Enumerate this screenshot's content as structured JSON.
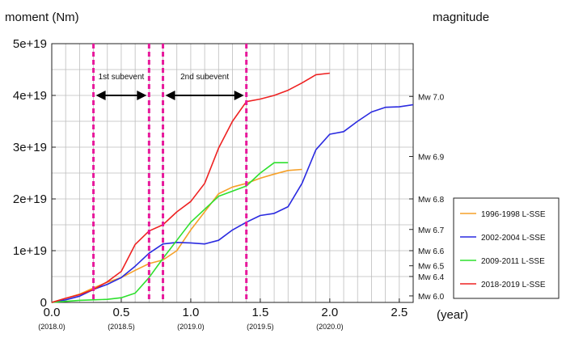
{
  "chart_data": {
    "type": "line",
    "title_left": "moment (Nm)",
    "title_right": "magnitude",
    "xlabel": "(year)",
    "xlim": [
      0,
      2.6
    ],
    "ylim": [
      0,
      5e+19
    ],
    "x_ticks": [
      {
        "value": 0.0,
        "label": "0.0",
        "sub": "(2018.0)"
      },
      {
        "value": 0.5,
        "label": "0.5",
        "sub": "(2018.5)"
      },
      {
        "value": 1.0,
        "label": "1.0",
        "sub": "(2019.0)"
      },
      {
        "value": 1.5,
        "label": "1.5",
        "sub": "(2019.5)"
      },
      {
        "value": 2.0,
        "label": "2.0",
        "sub": "(2020.0)"
      },
      {
        "value": 2.5,
        "label": "2.5",
        "sub": ""
      }
    ],
    "y_ticks": [
      {
        "value": 0,
        "label": "0"
      },
      {
        "value": 1e+19,
        "label": "1e+19"
      },
      {
        "value": 2e+19,
        "label": "2e+19"
      },
      {
        "value": 3e+19,
        "label": "3e+19"
      },
      {
        "value": 4e+19,
        "label": "4e+19"
      },
      {
        "value": 5e+19,
        "label": "5e+19"
      }
    ],
    "magnitude_ticks": [
      {
        "label": "Mw 7.0",
        "moment": 3.98e+19
      },
      {
        "label": "Mw 6.9",
        "moment": 2.82e+19
      },
      {
        "label": "Mw 6.8",
        "moment": 2e+19
      },
      {
        "label": "Mw 6.7",
        "moment": 1.41e+19
      },
      {
        "label": "Mw 6.6",
        "moment": 1e+19
      },
      {
        "label": "Mw 6.5",
        "moment": 7.08e+18
      },
      {
        "label": "Mw 6.4",
        "moment": 5.01e+18
      },
      {
        "label": "Mw 6.0",
        "moment": 1.26e+18
      }
    ],
    "vertical_lines": [
      0.3,
      0.7,
      0.8,
      1.4
    ],
    "subevents": [
      {
        "label": "1st subevent",
        "x_start": 0.3,
        "x_end": 0.7,
        "y": 4e+19
      },
      {
        "label": "2nd subevent",
        "x_start": 0.8,
        "x_end": 1.4,
        "y": 4e+19
      }
    ],
    "series": [
      {
        "name": "1996-1998 L-SSE",
        "color": "#f5a028",
        "x": [
          0.0,
          0.1,
          0.2,
          0.3,
          0.4,
          0.5,
          0.6,
          0.7,
          0.8,
          0.9,
          1.0,
          1.1,
          1.2,
          1.3,
          1.4,
          1.5,
          1.6,
          1.7,
          1.8
        ],
        "y": [
          0,
          8e+17,
          1.6e+18,
          2.8e+18,
          3.9e+18,
          4.8e+18,
          6.2e+18,
          7.5e+18,
          8.2e+18,
          1e+19,
          1.4e+19,
          1.75e+19,
          2.1e+19,
          2.23e+19,
          2.3e+19,
          2.4e+19,
          2.48e+19,
          2.55e+19,
          2.57e+19
        ]
      },
      {
        "name": "2002-2004 L-SSE",
        "color": "#2a2ae0",
        "x": [
          0.0,
          0.1,
          0.2,
          0.3,
          0.4,
          0.5,
          0.6,
          0.7,
          0.8,
          0.9,
          1.0,
          1.1,
          1.2,
          1.3,
          1.4,
          1.5,
          1.6,
          1.7,
          1.8,
          1.9,
          2.0,
          2.1,
          2.2,
          2.3,
          2.4,
          2.5,
          2.6
        ],
        "y": [
          0,
          5e+17,
          1.2e+18,
          2.5e+18,
          3.5e+18,
          4.8e+18,
          7e+18,
          9.5e+18,
          1.13e+19,
          1.16e+19,
          1.15e+19,
          1.13e+19,
          1.2e+19,
          1.4e+19,
          1.55e+19,
          1.68e+19,
          1.72e+19,
          1.85e+19,
          2.3e+19,
          2.95e+19,
          3.25e+19,
          3.3e+19,
          3.5e+19,
          3.68e+19,
          3.77e+19,
          3.78e+19,
          3.82e+19
        ]
      },
      {
        "name": "2009-2011 L-SSE",
        "color": "#2ee02e",
        "x": [
          0.0,
          0.1,
          0.2,
          0.3,
          0.4,
          0.5,
          0.6,
          0.7,
          0.8,
          0.9,
          1.0,
          1.1,
          1.2,
          1.3,
          1.4,
          1.5,
          1.6,
          1.7
        ],
        "y": [
          0,
          2e+17,
          4e+17,
          5e+17,
          6e+17,
          9e+17,
          1.8e+18,
          4.8e+18,
          8.5e+18,
          1.2e+19,
          1.55e+19,
          1.8e+19,
          2.05e+19,
          2.15e+19,
          2.25e+19,
          2.5e+19,
          2.7e+19,
          2.7e+19
        ]
      },
      {
        "name": "2018-2019 L-SSE",
        "color": "#ee2222",
        "x": [
          0.0,
          0.1,
          0.2,
          0.3,
          0.4,
          0.5,
          0.6,
          0.7,
          0.8,
          0.9,
          1.0,
          1.1,
          1.2,
          1.3,
          1.4,
          1.5,
          1.6,
          1.7,
          1.8,
          1.9,
          2.0
        ],
        "y": [
          0,
          8e+17,
          1.5e+18,
          2.5e+18,
          4e+18,
          6e+18,
          1.12e+19,
          1.38e+19,
          1.5e+19,
          1.75e+19,
          1.95e+19,
          2.3e+19,
          2.98e+19,
          3.5e+19,
          3.88e+19,
          3.93e+19,
          4e+19,
          4.1e+19,
          4.24e+19,
          4.4e+19,
          4.43e+19
        ]
      }
    ]
  }
}
